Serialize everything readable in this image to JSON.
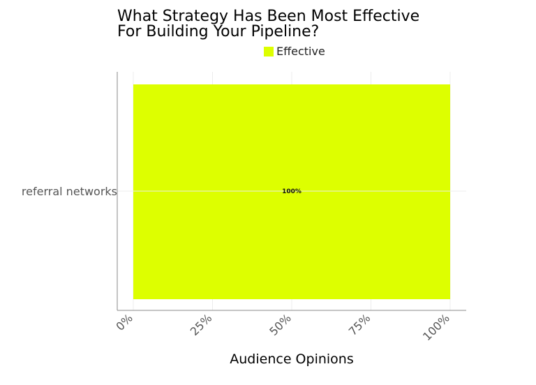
{
  "chart_data": {
    "type": "bar",
    "orientation": "horizontal",
    "title": "What Strategy Has Been Most Effective For Building Your Pipeline?",
    "title_lines": [
      "What Strategy Has Been Most Effective",
      "For Building Your Pipeline?"
    ],
    "categories": [
      "referral networks"
    ],
    "series": [
      {
        "name": "Effective",
        "values": [
          100
        ],
        "color": "#ddff00"
      }
    ],
    "data_labels": [
      "100%"
    ],
    "xlabel": "Audience Opinions",
    "ylabel": "",
    "xlim": [
      0,
      100
    ],
    "x_ticks": [
      0,
      25,
      50,
      75,
      100
    ],
    "x_tick_labels": [
      "0%",
      "25%",
      "50%",
      "75%",
      "100%"
    ],
    "grid": true,
    "legend_position": "top-center"
  }
}
